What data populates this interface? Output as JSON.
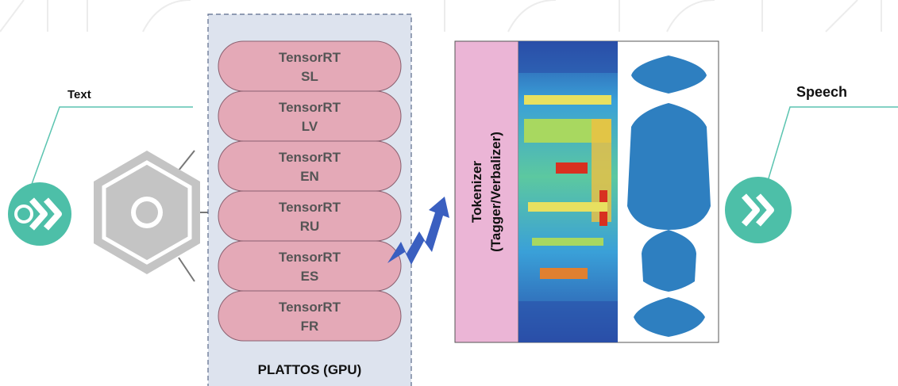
{
  "input_label": "Text",
  "output_label": "Speech",
  "gpu_box": {
    "title": "PLATTOS (GPU)",
    "modules": [
      {
        "engine": "TensorRT",
        "language": "SL"
      },
      {
        "engine": "TensorRT",
        "language": "LV"
      },
      {
        "engine": "TensorRT",
        "language": "EN"
      },
      {
        "engine": "TensorRT",
        "language": "RU"
      },
      {
        "engine": "TensorRT",
        "language": "ES"
      },
      {
        "engine": "TensorRT",
        "language": "FR"
      }
    ]
  },
  "tokenizer": {
    "line1": "Tokenizer",
    "line2": "(Tagger/Verbalizer)"
  }
}
